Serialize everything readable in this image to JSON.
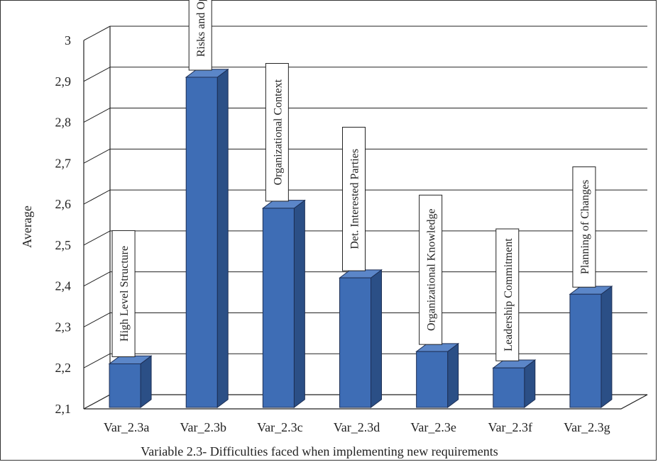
{
  "chart_data": {
    "type": "bar",
    "ylabel": "Average",
    "xlabel": "Variable 2.3- Difficulties faced when implementing new requirements",
    "ylim": [
      2.1,
      3.0
    ],
    "yticks": [
      "2,1",
      "2,2",
      "2,3",
      "2,4",
      "2,5",
      "2,6",
      "2,7",
      "2,8",
      "2,9",
      "3"
    ],
    "grid": true,
    "categories": [
      "Var_2.3a",
      "Var_2.3b",
      "Var_2.3c",
      "Var_2.3d",
      "Var_2.3e",
      "Var_2.3f",
      "Var_2.3g"
    ],
    "values": [
      2.21,
      2.91,
      2.59,
      2.42,
      2.24,
      2.2,
      2.38
    ],
    "bar_labels": [
      "High Level Structure",
      "Risks and Opport.",
      "Organizational Context",
      "Det. Interested Parties",
      "Organizational Knowledge",
      "Leadership Commitment",
      "Planning of Changes"
    ],
    "colors": {
      "bar_front": "#3e6db5",
      "bar_side": "#2b4f86",
      "bar_top": "#5b86c8"
    }
  }
}
